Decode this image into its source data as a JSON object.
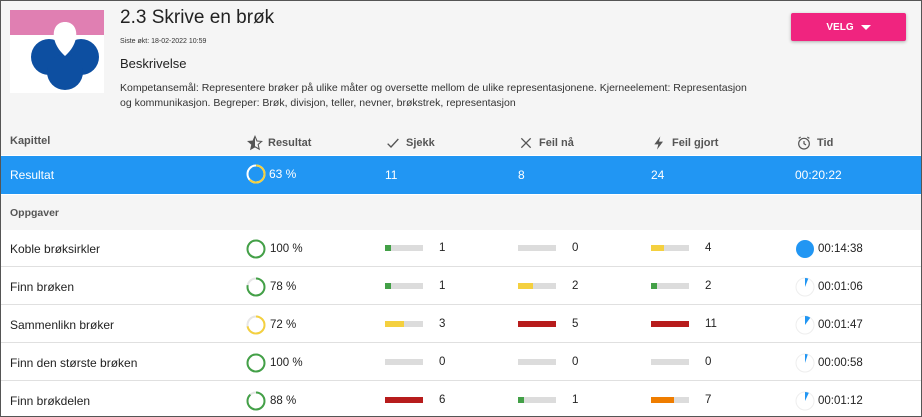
{
  "header": {
    "title": "2.3 Skrive en brøk",
    "updated": "Siste økt: 18-02-2022 10:59",
    "description_heading": "Beskrivelse",
    "description": "Kompetansemål: Representere brøker på ulike måter og oversette mellom de ulike representasjonene. Kjerneelement: Representasjon og kommunikasjon. Begreper: Brøk, divisjon, teller, nevner, brøkstrek, representasjon",
    "velg_label": "VELG"
  },
  "columns": {
    "kapittel": "Kapittel",
    "resultat": "Resultat",
    "sjekk": "Sjekk",
    "feil_naa": "Feil nå",
    "feil_gjort": "Feil gjort",
    "tid": "Tid"
  },
  "summary": {
    "label": "Resultat",
    "percent": "63 %",
    "percent_value": 63,
    "sjekk": "11",
    "feil_naa": "8",
    "feil_gjort": "24",
    "tid": "00:20:22"
  },
  "section_label": "Oppgaver",
  "colors": {
    "primary": "#2196f3",
    "accent": "#f0247f",
    "green": "#43a047",
    "yellow": "#f4d03f",
    "red": "#b71c1c",
    "orange": "#ef7d00"
  },
  "tasks": [
    {
      "name": "Koble brøksirkler",
      "percent": "100 %",
      "percent_value": 100,
      "ring_color": "#43a047",
      "sjekk": "1",
      "sjekk_bar": {
        "fill": 0.15,
        "color": "#43a047"
      },
      "feil_naa": "0",
      "feil_naa_bar": {
        "fill": 0,
        "color": "#dcdcdc"
      },
      "feil_gjort": "4",
      "feil_gjort_bar": {
        "fill": 0.35,
        "color": "#f4d03f"
      },
      "tid": "00:14:38",
      "tid_fraction": 1.0
    },
    {
      "name": "Finn brøken",
      "percent": "78 %",
      "percent_value": 78,
      "ring_color": "#43a047",
      "sjekk": "1",
      "sjekk_bar": {
        "fill": 0.15,
        "color": "#43a047"
      },
      "feil_naa": "2",
      "feil_naa_bar": {
        "fill": 0.4,
        "color": "#f4d03f"
      },
      "feil_gjort": "2",
      "feil_gjort_bar": {
        "fill": 0.15,
        "color": "#43a047"
      },
      "tid": "00:01:06",
      "tid_fraction": 0.06
    },
    {
      "name": "Sammenlikn brøker",
      "percent": "72 %",
      "percent_value": 72,
      "ring_color": "#f4d03f",
      "sjekk": "3",
      "sjekk_bar": {
        "fill": 0.5,
        "color": "#f4d03f"
      },
      "feil_naa": "5",
      "feil_naa_bar": {
        "fill": 1.0,
        "color": "#b71c1c"
      },
      "feil_gjort": "11",
      "feil_gjort_bar": {
        "fill": 1.0,
        "color": "#b71c1c"
      },
      "tid": "00:01:47",
      "tid_fraction": 0.1
    },
    {
      "name": "Finn den største brøken",
      "percent": "100 %",
      "percent_value": 100,
      "ring_color": "#43a047",
      "sjekk": "0",
      "sjekk_bar": {
        "fill": 0,
        "color": "#dcdcdc"
      },
      "feil_naa": "0",
      "feil_naa_bar": {
        "fill": 0,
        "color": "#dcdcdc"
      },
      "feil_gjort": "0",
      "feil_gjort_bar": {
        "fill": 0,
        "color": "#dcdcdc"
      },
      "tid": "00:00:58",
      "tid_fraction": 0.05
    },
    {
      "name": "Finn brøkdelen",
      "percent": "88 %",
      "percent_value": 88,
      "ring_color": "#43a047",
      "sjekk": "6",
      "sjekk_bar": {
        "fill": 1.0,
        "color": "#b71c1c"
      },
      "feil_naa": "1",
      "feil_naa_bar": {
        "fill": 0.15,
        "color": "#43a047"
      },
      "feil_gjort": "7",
      "feil_gjort_bar": {
        "fill": 0.6,
        "color": "#ef7d00"
      },
      "tid": "00:01:12",
      "tid_fraction": 0.07
    }
  ]
}
